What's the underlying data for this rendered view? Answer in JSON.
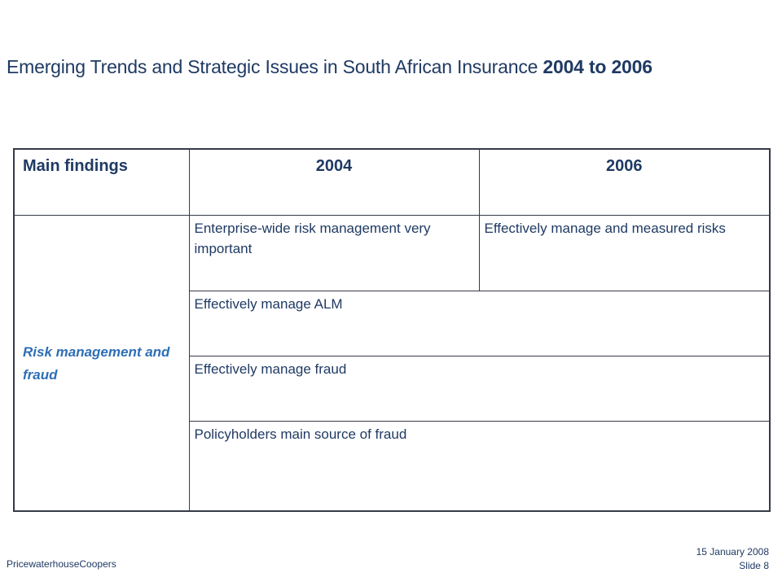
{
  "slide": {
    "title_main": "Emerging Trends and Strategic Issues in South African Insurance ",
    "title_years": "2004 to 2006"
  },
  "table": {
    "headers": [
      "Main findings",
      "2004",
      "2006"
    ],
    "category": "Risk management and fraud",
    "rows": [
      {
        "col_2004": "Enterprise-wide risk management very important",
        "col_2006": "Effectively manage and measured risks"
      },
      {
        "merged": "Effectively manage ALM"
      },
      {
        "merged": "Effectively manage fraud"
      },
      {
        "merged": "Policyholders main source of fraud"
      }
    ]
  },
  "footer": {
    "company": "PricewaterhouseCoopers",
    "date": "15 January 2008",
    "slide_number": "Slide 8"
  },
  "colors": {
    "text": "#1f3a63",
    "category_text": "#2e6fb5",
    "border": "#353a45"
  }
}
